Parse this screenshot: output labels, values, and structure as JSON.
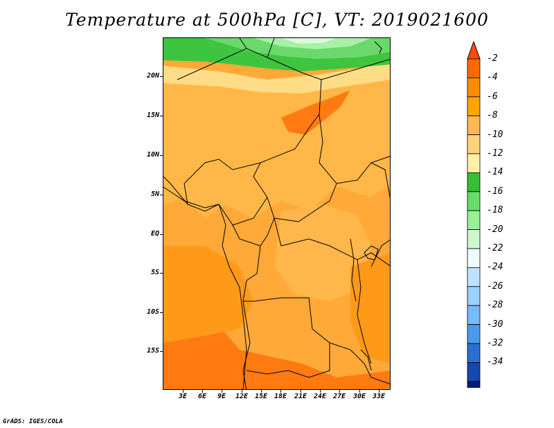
{
  "title": "Temperature at 500hPa [C], VT: 2019021600",
  "credit": "GrADS: IGES/COLA",
  "y_axis_labels": [
    "20N",
    "15N",
    "10N",
    "5N",
    "EQ",
    "5S",
    "10S",
    "15S"
  ],
  "x_axis_labels": [
    "3E",
    "6E",
    "9E",
    "12E",
    "15E",
    "18E",
    "21E",
    "24E",
    "27E",
    "30E",
    "33E"
  ],
  "colorbar": {
    "labels": [
      "-2",
      "-4",
      "-6",
      "-8",
      "-10",
      "-12",
      "-14",
      "-16",
      "-18",
      "-20",
      "-22",
      "-24",
      "-26",
      "-28",
      "-30",
      "-32",
      "-34"
    ],
    "colors": [
      "#ff6a00",
      "#ff8c00",
      "#ffa500",
      "#ffb950",
      "#ffd37a",
      "#fff0a8",
      "#33c033",
      "#66dd66",
      "#99f099",
      "#ccf8cc",
      "#eefcff",
      "#bfe3ff",
      "#9cd0ff",
      "#76baff",
      "#4c99f0",
      "#2a6fd4",
      "#1648b0",
      "#081a78"
    ],
    "top_arrow_color": "#ff4c00",
    "bottom_arrow_color": "#e0e0ff"
  }
}
